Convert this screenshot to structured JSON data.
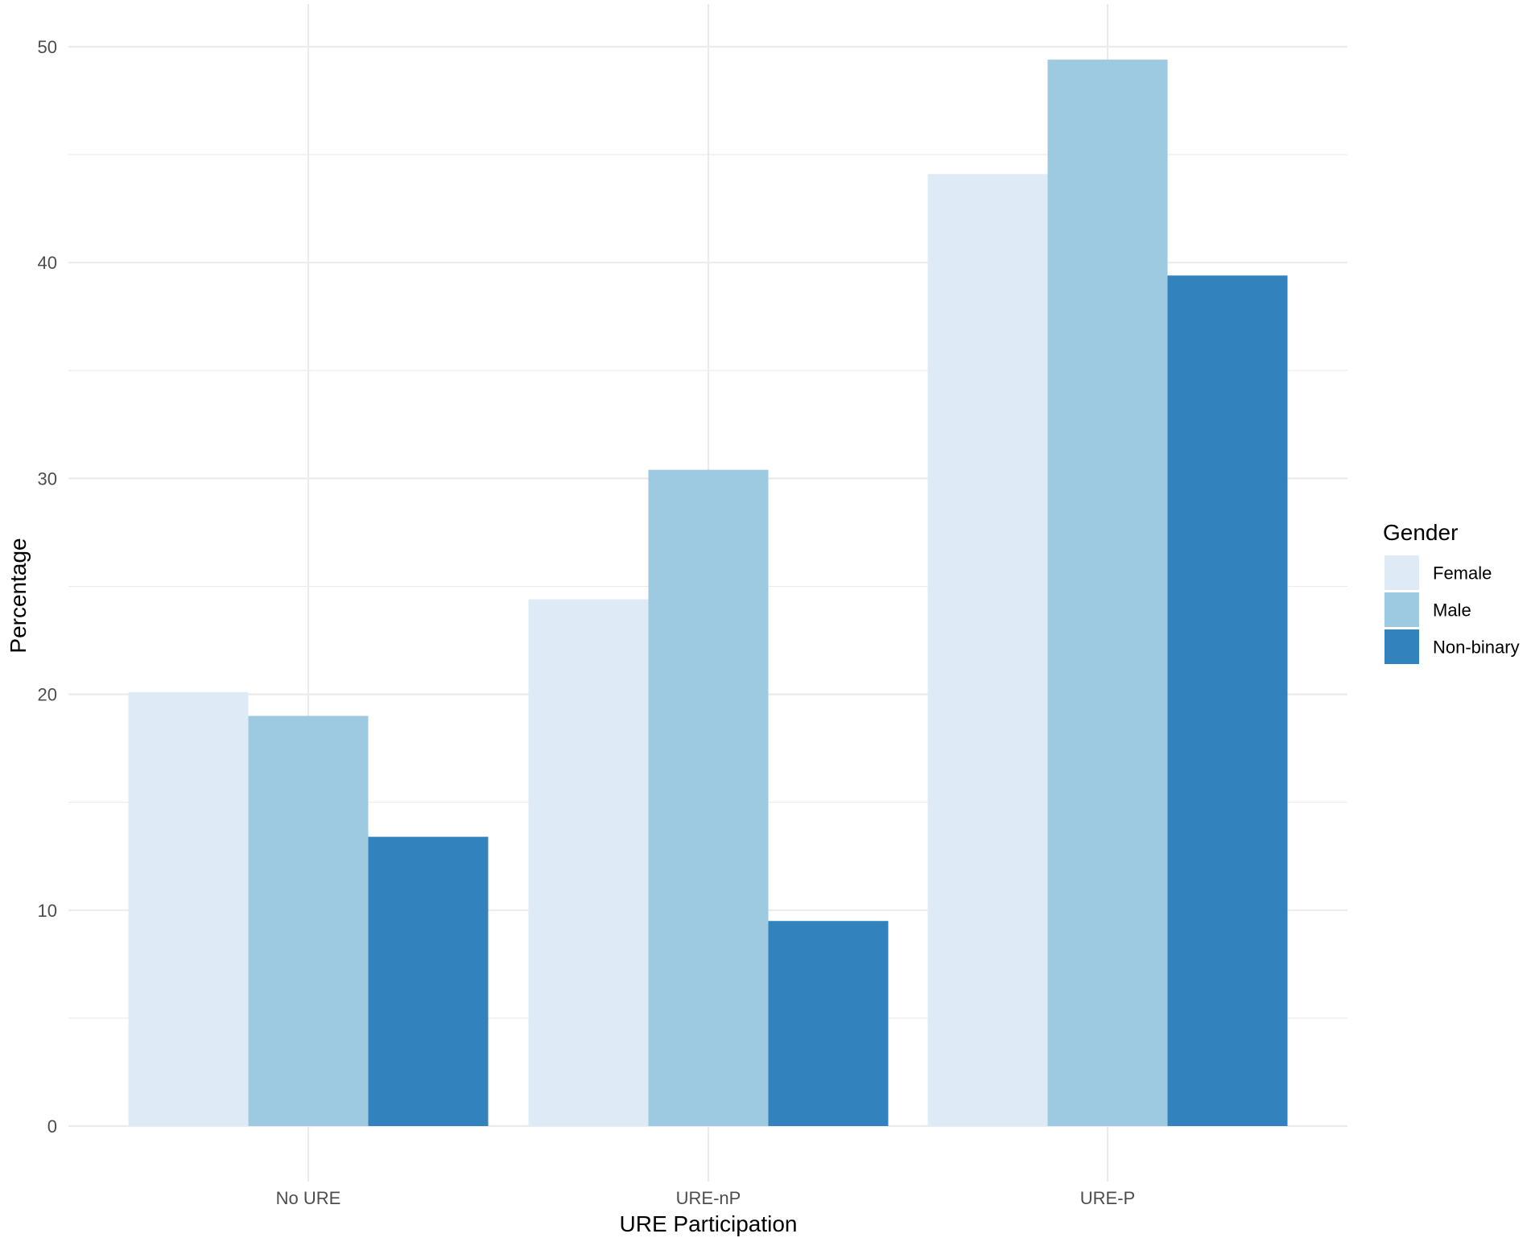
{
  "chart_data": {
    "type": "bar",
    "xlabel": "URE Participation",
    "ylabel": "Percentage",
    "categories": [
      "No URE",
      "URE-nP",
      "URE-P"
    ],
    "series": [
      {
        "name": "Female",
        "color": "#deebf7",
        "values": [
          20.1,
          24.4,
          44.1
        ]
      },
      {
        "name": "Male",
        "color": "#9ecae1",
        "values": [
          19.0,
          30.4,
          49.4
        ]
      },
      {
        "name": "Non-binary",
        "color": "#3182bd",
        "values": [
          13.4,
          9.5,
          39.4
        ]
      }
    ],
    "ylim": [
      0,
      50
    ],
    "yticks": [
      "0",
      "10",
      "20",
      "30",
      "40",
      "50"
    ],
    "grid": true,
    "legend": {
      "title": "Gender",
      "position": "right"
    }
  }
}
